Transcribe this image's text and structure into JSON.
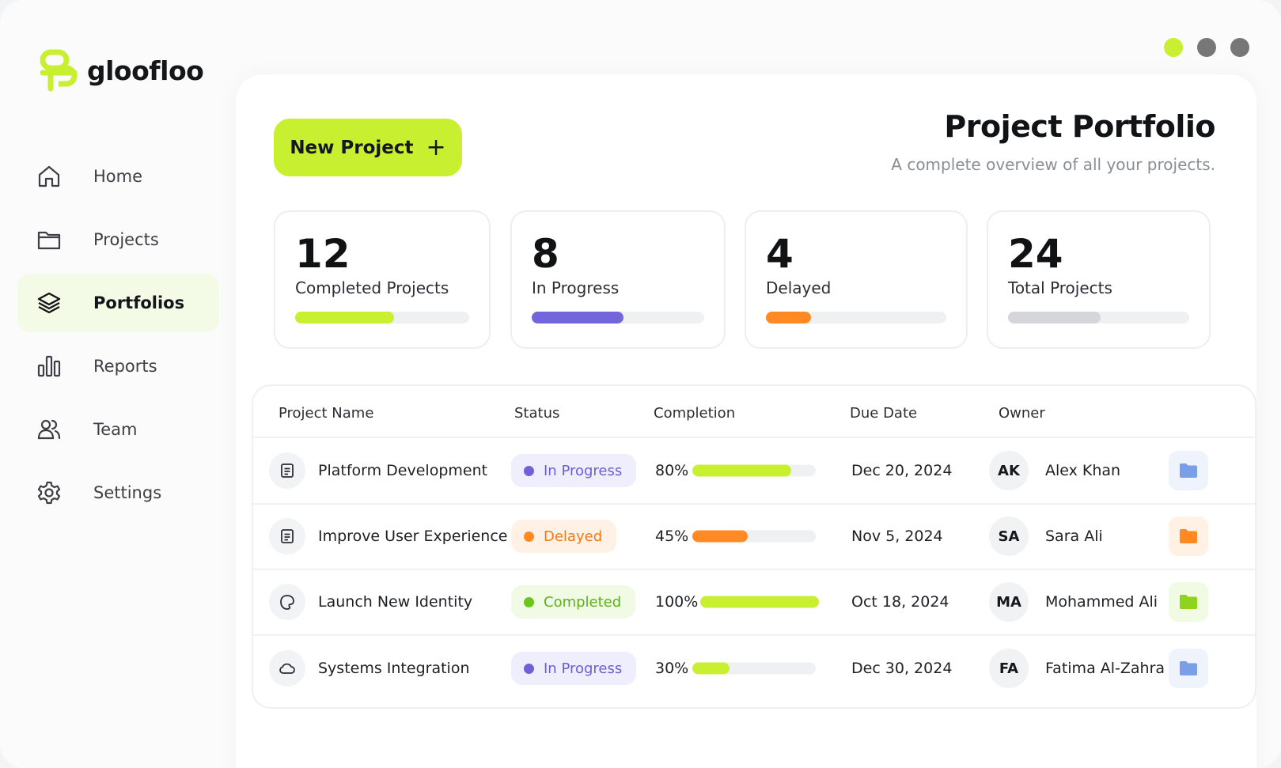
{
  "brand": {
    "name": "gloofloo",
    "accent": "#c8f031"
  },
  "window_controls": [
    {
      "name": "dot-green",
      "color": "#c8f031"
    },
    {
      "name": "dot-gray-1",
      "color": "#777777"
    },
    {
      "name": "dot-gray-2",
      "color": "#777777"
    }
  ],
  "sidebar": {
    "items": [
      {
        "label": "Home",
        "icon": "home-icon",
        "active": false
      },
      {
        "label": "Projects",
        "icon": "folder-icon",
        "active": false
      },
      {
        "label": "Portfolios",
        "icon": "layers-icon",
        "active": true
      },
      {
        "label": "Reports",
        "icon": "bar-chart-icon",
        "active": false
      },
      {
        "label": "Team",
        "icon": "users-icon",
        "active": false
      },
      {
        "label": "Settings",
        "icon": "gear-icon",
        "active": false
      }
    ]
  },
  "header": {
    "new_button_label": "New Project",
    "new_button_icon": "+",
    "title": "Project Portfolio",
    "subtitle": "A complete overview of all your projects."
  },
  "stats": [
    {
      "value": "12",
      "label": "Completed Projects",
      "progress": 0.57,
      "color": "#c8f031"
    },
    {
      "value": "8",
      "label": "In Progress",
      "progress": 0.53,
      "color": "#7366dc"
    },
    {
      "value": "4",
      "label": "Delayed",
      "progress": 0.25,
      "color": "#ff8a24"
    },
    {
      "value": "24",
      "label": "Total Projects",
      "progress": 0.51,
      "color": "#d4d6da"
    }
  ],
  "table": {
    "columns": [
      "Project Name",
      "Status",
      "Completion",
      "Due Date",
      "Owner"
    ],
    "rows": [
      {
        "name": "Platform Development",
        "icon": "document-icon",
        "status": "In Progress",
        "status_kind": "progress",
        "completion": "80%",
        "progress": 0.8,
        "due": "Dec 20, 2024",
        "initials": "AK",
        "owner": "Alex Khan",
        "folder_color": "#7a9fe8"
      },
      {
        "name": "Improve User Experience",
        "icon": "document-icon",
        "status": "Delayed",
        "status_kind": "delayed",
        "completion": "45%",
        "progress": 0.45,
        "due": "Nov 5, 2024",
        "initials": "SA",
        "owner": "Sara Ali",
        "folder_color": "#ff8a24"
      },
      {
        "name": "Launch New Identity",
        "icon": "brush-icon",
        "status": "Completed",
        "status_kind": "completed",
        "completion": "100%",
        "progress": 1.0,
        "due": "Oct 18, 2024",
        "initials": "MA",
        "owner": "Mohammed Ali",
        "folder_color": "#8ed41c"
      },
      {
        "name": "Systems Integration",
        "icon": "cloud-icon",
        "status": "In Progress",
        "status_kind": "progress",
        "completion": "30%",
        "progress": 0.3,
        "due": "Dec 30, 2024",
        "initials": "FA",
        "owner": "Fatima Al-Zahra",
        "folder_color": "#7a9fe8"
      }
    ]
  },
  "status_styles": {
    "progress": {
      "bg": "#eeeefc",
      "dot": "#6f62d8",
      "text": "#6a5fd2",
      "bar": "#c8f031"
    },
    "delayed": {
      "bg": "#fff1e6",
      "dot": "#ff8a24",
      "text": "#f27a14",
      "bar": "#ff8a24"
    },
    "completed": {
      "bg": "#f1fae4",
      "dot": "#6cc51e",
      "text": "#5bb314",
      "bar": "#c8f031"
    }
  }
}
